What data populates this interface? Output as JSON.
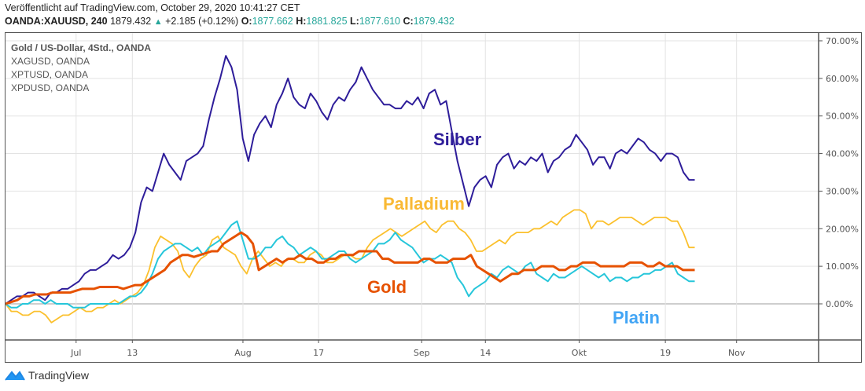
{
  "header": {
    "published": "Veröffentlicht auf TradingView.com, October 29, 2020 10:41:27 CET",
    "symbol": "OANDA:XAUUSD, 240",
    "last": "1879.432",
    "change": "+2.185 (+0.12%)",
    "o_label": "O:",
    "o": "1877.662",
    "h_label": "H:",
    "h": "1881.825",
    "l_label": "L:",
    "l": "1877.610",
    "c_label": "C:",
    "c": "1879.432"
  },
  "legend": [
    "Gold  / US-Dollar, 4Std., OANDA",
    "XAGUSD, OANDA",
    "XPTUSD, OANDA",
    "XPDUSD, OANDA"
  ],
  "annotations": {
    "silber": "Silber",
    "palladium": "Palladium",
    "gold": "Gold",
    "platin": "Platin"
  },
  "footer": {
    "brand": "TradingView"
  },
  "colors": {
    "silber": "#2e1d9a",
    "gold": "#e65100",
    "platin": "#26c6da",
    "palladium": "#fbc02d",
    "platin_label": "#42a5f5",
    "palladium_label": "#f9b934"
  },
  "chart_data": {
    "type": "line",
    "title": "Gold / US-Dollar, 4Std., OANDA — percent change comparison",
    "xlabel": "",
    "ylabel": "",
    "y_unit": "%",
    "ylim": [
      -10,
      72
    ],
    "y_ticks": [
      0,
      10,
      20,
      30,
      40,
      50,
      60,
      70
    ],
    "y_tick_labels": [
      "0.00%",
      "10.00%",
      "20.00%",
      "30.00%",
      "40.00%",
      "50.00%",
      "60.00%",
      "70.00%"
    ],
    "x_range": [
      0,
      130
    ],
    "x_ticks": [
      {
        "t": 11.3,
        "label": "Jul"
      },
      {
        "t": 20.3,
        "label": "13"
      },
      {
        "t": 38,
        "label": "Aug"
      },
      {
        "t": 50.1,
        "label": "17"
      },
      {
        "t": 66.6,
        "label": "Sep"
      },
      {
        "t": 76.8,
        "label": "14"
      },
      {
        "t": 91.8,
        "label": "Okt"
      },
      {
        "t": 105.6,
        "label": "19"
      },
      {
        "t": 117,
        "label": "Nov"
      }
    ],
    "grid": true,
    "legend_position": "top-left",
    "series": [
      {
        "name": "XAGUSD (Silber)",
        "values": [
          0,
          1,
          2,
          2,
          3,
          3,
          2,
          1,
          3,
          3,
          4,
          4,
          5,
          6,
          8,
          9,
          9,
          10,
          11,
          13,
          12,
          13,
          15,
          19,
          27,
          31,
          30,
          35,
          40,
          37,
          35,
          33,
          38,
          39,
          40,
          42,
          49,
          55,
          60,
          66,
          63,
          57,
          44,
          38,
          45,
          48,
          50,
          47,
          53,
          56,
          60,
          55,
          53,
          52,
          56,
          54,
          51,
          49,
          53,
          55,
          54,
          57,
          59,
          63,
          60,
          57,
          55,
          53,
          53,
          52,
          52,
          54,
          53,
          55,
          52,
          56,
          57,
          53,
          54,
          46,
          38,
          32,
          26,
          31,
          33,
          34,
          31,
          37,
          39,
          40,
          36,
          38,
          37,
          39,
          38,
          40,
          35,
          38,
          39,
          41,
          42,
          45,
          43,
          41,
          37,
          39,
          39,
          36,
          40,
          41,
          40,
          42,
          44,
          43,
          41,
          40,
          38,
          40,
          40,
          39,
          35,
          33,
          33
        ],
        "color": "#2e1d9a"
      },
      {
        "name": "XAUUSD (Gold)",
        "values": [
          0,
          0.5,
          1,
          2,
          2,
          2.5,
          2.5,
          2.5,
          3,
          3,
          3,
          3,
          3.5,
          4,
          4,
          4,
          4.5,
          4.5,
          4.5,
          4.5,
          4,
          4.5,
          5,
          5,
          6,
          7,
          8,
          9,
          11,
          12,
          13,
          13,
          12.5,
          13,
          13.5,
          14,
          14,
          16,
          17,
          18,
          19,
          18,
          16,
          9,
          10,
          11,
          12,
          11,
          12,
          12,
          13,
          12,
          12,
          11,
          11,
          12,
          12,
          13,
          13,
          13,
          14,
          14,
          14,
          14,
          12,
          12,
          11,
          11,
          11,
          11,
          11,
          12,
          12,
          11,
          11,
          11,
          12,
          12,
          12,
          13,
          10,
          9,
          8,
          7,
          6,
          7,
          8,
          8,
          9,
          9,
          9,
          10,
          10,
          10,
          9,
          9,
          10,
          10,
          11,
          11,
          11,
          10,
          10,
          10,
          10,
          10,
          11,
          11,
          11,
          10,
          10,
          11,
          10,
          10,
          10,
          9,
          9,
          9
        ],
        "color": "#e65100"
      },
      {
        "name": "XPTUSD (Platin)",
        "values": [
          0,
          -1,
          -1,
          0,
          0,
          1,
          1,
          0,
          1,
          0,
          0,
          0,
          -1,
          -1,
          -1,
          0,
          0,
          0,
          0,
          0,
          0,
          1,
          2,
          2,
          3,
          5,
          8,
          12,
          14,
          15,
          16,
          16,
          15,
          14,
          15,
          13,
          15,
          16,
          17,
          19,
          21,
          22,
          17,
          12,
          12,
          13,
          15,
          15,
          17,
          18,
          16,
          15,
          13,
          14,
          15,
          14,
          12,
          12,
          13,
          14,
          14,
          12,
          11,
          12,
          13,
          14,
          16,
          16,
          17,
          19,
          17,
          16,
          15,
          13,
          11,
          12,
          12,
          13,
          12,
          11,
          7,
          5,
          2,
          4,
          5,
          6,
          8,
          7,
          9,
          10,
          9,
          8,
          10,
          11,
          8,
          7,
          6,
          8,
          7,
          7,
          8,
          9,
          10,
          9,
          8,
          7,
          8,
          6,
          7,
          7,
          6,
          7,
          7,
          8,
          8,
          9,
          9,
          10,
          11,
          8,
          7,
          6,
          6
        ],
        "color": "#26c6da"
      },
      {
        "name": "XPDUSD (Palladium)",
        "values": [
          0,
          -2,
          -2,
          -3,
          -3,
          -2,
          -2,
          -3,
          -5,
          -4,
          -3,
          -3,
          -2,
          -1,
          -2,
          -2,
          -1,
          -1,
          0,
          1,
          0,
          1,
          2,
          3,
          5,
          9,
          15,
          18,
          17,
          16,
          14,
          9,
          7,
          10,
          12,
          13,
          17,
          18,
          15,
          14,
          13,
          10,
          8,
          12,
          14,
          12,
          10,
          11,
          10,
          12,
          12,
          11,
          11,
          13,
          14,
          13,
          11,
          11,
          12,
          13,
          13,
          12,
          12,
          15,
          17,
          18,
          19,
          20,
          19,
          18,
          19,
          20,
          21,
          22,
          20,
          19,
          21,
          22,
          22,
          20,
          19,
          17,
          14,
          14,
          15,
          16,
          17,
          16,
          18,
          19,
          19,
          19,
          20,
          20,
          21,
          22,
          21,
          23,
          24,
          25,
          25,
          24,
          20,
          22,
          22,
          21,
          22,
          23,
          23,
          23,
          22,
          21,
          22,
          23,
          23,
          23,
          22,
          22,
          19,
          15,
          15
        ],
        "color": "#fbc02d"
      }
    ]
  }
}
